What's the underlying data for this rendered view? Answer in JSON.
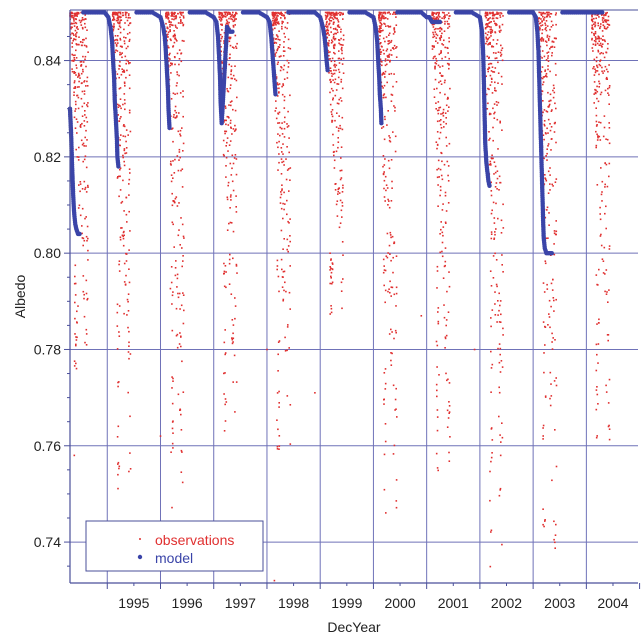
{
  "chart_data": {
    "type": "scatter",
    "xlabel": "DecYear",
    "ylabel": "Albedo",
    "xlim": [
      1994.3,
      2004.97
    ],
    "ylim": [
      0.7315,
      0.8505
    ],
    "x_tick_labels": [
      "1995",
      "1996",
      "1997",
      "1998",
      "1999",
      "2000",
      "2001",
      "2002",
      "2003",
      "2004"
    ],
    "x_grid_years": [
      1995,
      1996,
      1997,
      1998,
      1999,
      2000,
      2001,
      2002,
      2003,
      2004
    ],
    "y_ticks": [
      0.74,
      0.76,
      0.78,
      0.8,
      0.82,
      0.84
    ],
    "y_tick_labels": [
      "0.74",
      "0.76",
      "0.78",
      "0.80",
      "0.82",
      "0.84"
    ],
    "grid": true,
    "legend_position": "bottom-left",
    "series": [
      {
        "name": "observations",
        "marker": "small dot",
        "color": "#e03030",
        "seasons": [
          {
            "year_start": 1994.3,
            "min_albedo": 0.776,
            "outliers": [
              [
                1994.38,
                0.758
              ],
              [
                1994.45,
                0.789
              ],
              [
                1994.55,
                0.792
              ]
            ]
          },
          {
            "year_start": 1995.1,
            "min_albedo": 0.75,
            "outliers": [
              [
                1995.2,
                0.754
              ]
            ]
          },
          {
            "year_start": 1996.1,
            "min_albedo": 0.747,
            "outliers": [
              [
                1996.0,
                0.762
              ]
            ]
          },
          {
            "year_start": 1997.1,
            "min_albedo": 0.762,
            "outliers": []
          },
          {
            "year_start": 1998.1,
            "min_albedo": 0.758,
            "outliers": [
              [
                1998.12,
                0.731
              ],
              [
                1998.14,
                0.732
              ],
              [
                1998.0,
                0.78
              ]
            ]
          },
          {
            "year_start": 1999.1,
            "min_albedo": 0.787,
            "outliers": [
              [
                1998.9,
                0.771
              ]
            ]
          },
          {
            "year_start": 2000.1,
            "min_albedo": 0.742,
            "outliers": []
          },
          {
            "year_start": 2001.1,
            "min_albedo": 0.754,
            "outliers": [
              [
                2000.9,
                0.787
              ]
            ]
          },
          {
            "year_start": 2002.1,
            "min_albedo": 0.733,
            "outliers": [
              [
                2001.9,
                0.78
              ]
            ]
          },
          {
            "year_start": 2003.1,
            "min_albedo": 0.735,
            "outliers": []
          },
          {
            "year_start": 2004.1,
            "min_albedo": 0.76,
            "outliers": []
          }
        ]
      },
      {
        "name": "model",
        "marker": "dot",
        "color": "#3a44a8",
        "curves": [
          [
            [
              1994.3,
              0.83
            ],
            [
              1994.32,
              0.825
            ],
            [
              1994.34,
              0.818
            ],
            [
              1994.36,
              0.812
            ],
            [
              1994.38,
              0.808
            ],
            [
              1994.4,
              0.806
            ],
            [
              1994.42,
              0.805
            ],
            [
              1994.45,
              0.804
            ],
            [
              1994.48,
              0.804
            ]
          ],
          [
            [
              1994.55,
              0.85
            ],
            [
              1994.65,
              0.85
            ],
            [
              1994.75,
              0.85
            ],
            [
              1994.85,
              0.85
            ],
            [
              1994.95,
              0.85
            ],
            [
              1995.02,
              0.849
            ],
            [
              1995.06,
              0.847
            ],
            [
              1995.09,
              0.844
            ],
            [
              1995.11,
              0.84
            ],
            [
              1995.13,
              0.836
            ],
            [
              1995.14,
              0.832
            ],
            [
              1995.16,
              0.828
            ],
            [
              1995.18,
              0.824
            ],
            [
              1995.19,
              0.82
            ],
            [
              1995.21,
              0.818
            ]
          ],
          [
            [
              1995.55,
              0.85
            ],
            [
              1995.7,
              0.85
            ],
            [
              1995.85,
              0.85
            ],
            [
              1996.0,
              0.849
            ],
            [
              1996.05,
              0.847
            ],
            [
              1996.08,
              0.845
            ],
            [
              1996.1,
              0.842
            ],
            [
              1996.12,
              0.838
            ],
            [
              1996.14,
              0.834
            ],
            [
              1996.15,
              0.83
            ],
            [
              1996.17,
              0.826
            ]
          ],
          [
            [
              1996.55,
              0.85
            ],
            [
              1996.7,
              0.85
            ],
            [
              1996.85,
              0.85
            ],
            [
              1997.0,
              0.849
            ],
            [
              1997.05,
              0.848
            ],
            [
              1997.08,
              0.845
            ],
            [
              1997.1,
              0.841
            ],
            [
              1997.12,
              0.836
            ],
            [
              1997.13,
              0.831
            ],
            [
              1997.15,
              0.827
            ],
            [
              1997.25,
              0.847
            ],
            [
              1997.3,
              0.846
            ],
            [
              1997.35,
              0.846
            ]
          ],
          [
            [
              1997.55,
              0.85
            ],
            [
              1997.7,
              0.85
            ],
            [
              1997.85,
              0.85
            ],
            [
              1998.0,
              0.849
            ],
            [
              1998.05,
              0.848
            ],
            [
              1998.08,
              0.845
            ],
            [
              1998.1,
              0.842
            ],
            [
              1998.12,
              0.839
            ],
            [
              1998.14,
              0.836
            ],
            [
              1998.16,
              0.833
            ]
          ],
          [
            [
              1998.4,
              0.85
            ],
            [
              1998.5,
              0.85
            ],
            [
              1998.6,
              0.85
            ],
            [
              1998.7,
              0.85
            ],
            [
              1998.8,
              0.85
            ],
            [
              1998.9,
              0.85
            ],
            [
              1999.0,
              0.849
            ],
            [
              1999.05,
              0.847
            ],
            [
              1999.08,
              0.845
            ],
            [
              1999.1,
              0.843
            ],
            [
              1999.12,
              0.84
            ],
            [
              1999.14,
              0.838
            ]
          ],
          [
            [
              1999.55,
              0.85
            ],
            [
              1999.7,
              0.85
            ],
            [
              1999.85,
              0.85
            ],
            [
              2000.0,
              0.849
            ],
            [
              2000.04,
              0.847
            ],
            [
              2000.07,
              0.844
            ],
            [
              2000.09,
              0.84
            ],
            [
              2000.11,
              0.836
            ],
            [
              2000.12,
              0.833
            ],
            [
              2000.14,
              0.83
            ],
            [
              2000.15,
              0.827
            ]
          ],
          [
            [
              2000.45,
              0.85
            ],
            [
              2000.6,
              0.85
            ],
            [
              2000.75,
              0.85
            ],
            [
              2000.9,
              0.85
            ],
            [
              2001.0,
              0.849
            ],
            [
              2001.05,
              0.849
            ],
            [
              2001.1,
              0.848
            ],
            [
              2001.15,
              0.848
            ],
            [
              2001.2,
              0.848
            ],
            [
              2001.25,
              0.848
            ]
          ],
          [
            [
              2001.55,
              0.85
            ],
            [
              2001.7,
              0.85
            ],
            [
              2001.85,
              0.85
            ],
            [
              2002.0,
              0.849
            ],
            [
              2002.04,
              0.846
            ],
            [
              2002.06,
              0.842
            ],
            [
              2002.07,
              0.838
            ],
            [
              2002.08,
              0.833
            ],
            [
              2002.09,
              0.828
            ],
            [
              2002.1,
              0.823
            ],
            [
              2002.12,
              0.819
            ],
            [
              2002.14,
              0.817
            ],
            [
              2002.16,
              0.815
            ],
            [
              2002.18,
              0.814
            ]
          ],
          [
            [
              2002.55,
              0.85
            ],
            [
              2002.7,
              0.85
            ],
            [
              2002.85,
              0.85
            ],
            [
              2003.0,
              0.85
            ],
            [
              2003.05,
              0.849
            ],
            [
              2003.08,
              0.846
            ],
            [
              2003.1,
              0.842
            ],
            [
              2003.11,
              0.838
            ],
            [
              2003.12,
              0.834
            ],
            [
              2003.13,
              0.83
            ],
            [
              2003.14,
              0.826
            ],
            [
              2003.15,
              0.822
            ],
            [
              2003.16,
              0.818
            ],
            [
              2003.17,
              0.814
            ],
            [
              2003.18,
              0.81
            ],
            [
              2003.19,
              0.806
            ],
            [
              2003.2,
              0.803
            ],
            [
              2003.22,
              0.801
            ],
            [
              2003.25,
              0.8
            ],
            [
              2003.3,
              0.8
            ],
            [
              2003.35,
              0.8
            ]
          ],
          [
            [
              2003.55,
              0.85
            ],
            [
              2003.7,
              0.85
            ],
            [
              2003.85,
              0.85
            ],
            [
              2004.0,
              0.85
            ],
            [
              2004.1,
              0.85
            ],
            [
              2004.2,
              0.85
            ],
            [
              2004.3,
              0.85
            ]
          ]
        ]
      }
    ]
  }
}
